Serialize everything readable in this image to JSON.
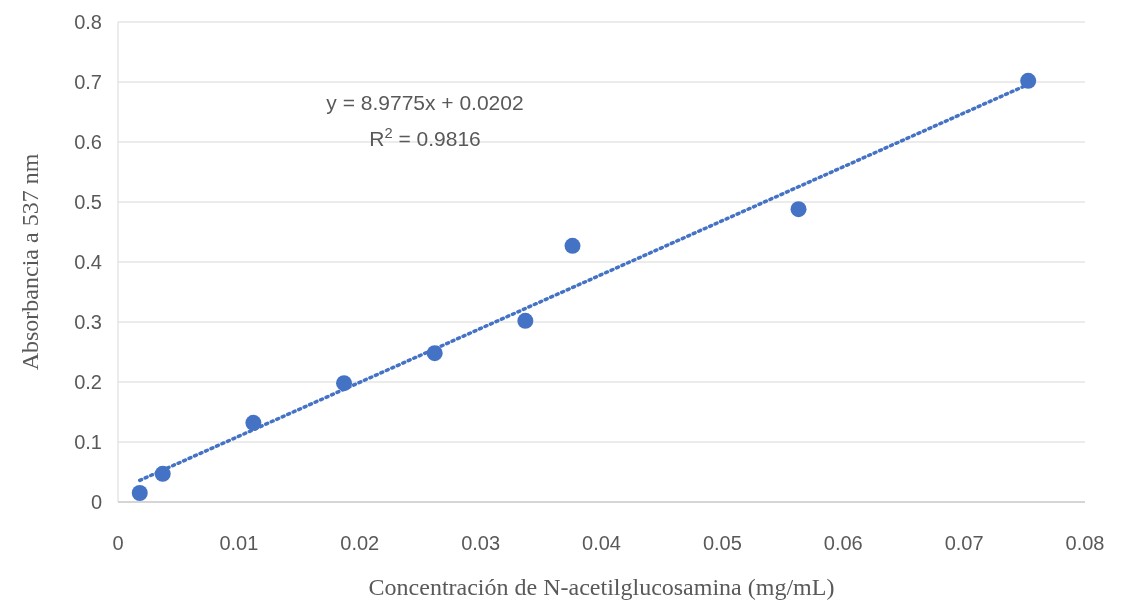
{
  "chart_data": {
    "type": "scatter",
    "xlabel": "Concentración de N-acetilglucosamina (mg/mL)",
    "ylabel": "Absorbancia a 537 nm",
    "annotations": [
      "y = 8.9775x + 0.0202",
      "R$^{2}$ = 0.9816"
    ],
    "xlim": [
      0,
      0.08
    ],
    "xticks": [
      0,
      0.01,
      0.02,
      0.03,
      0.04,
      0.05,
      0.06,
      0.07,
      0.08
    ],
    "ylim": [
      0,
      0.8
    ],
    "yticks": [
      0,
      0.1,
      0.2,
      0.3,
      0.4,
      0.5,
      0.6,
      0.7,
      0.8
    ],
    "grid": "y",
    "series": [
      {
        "color": "#4472c4",
        "marker": "circle",
        "x": [
          0.0018,
          0.0037,
          0.0112,
          0.0187,
          0.0262,
          0.0337,
          0.0376,
          0.0563,
          0.0753
        ],
        "values": [
          0.015,
          0.047,
          0.132,
          0.198,
          0.248,
          0.302,
          0.427,
          0.488,
          0.702
        ]
      },
      {
        "type": "line",
        "color": "#4472c4",
        "line_style": "dotted",
        "x": [
          0.0018,
          0.0753
        ],
        "values": [
          0.036,
          0.696
        ]
      }
    ]
  }
}
